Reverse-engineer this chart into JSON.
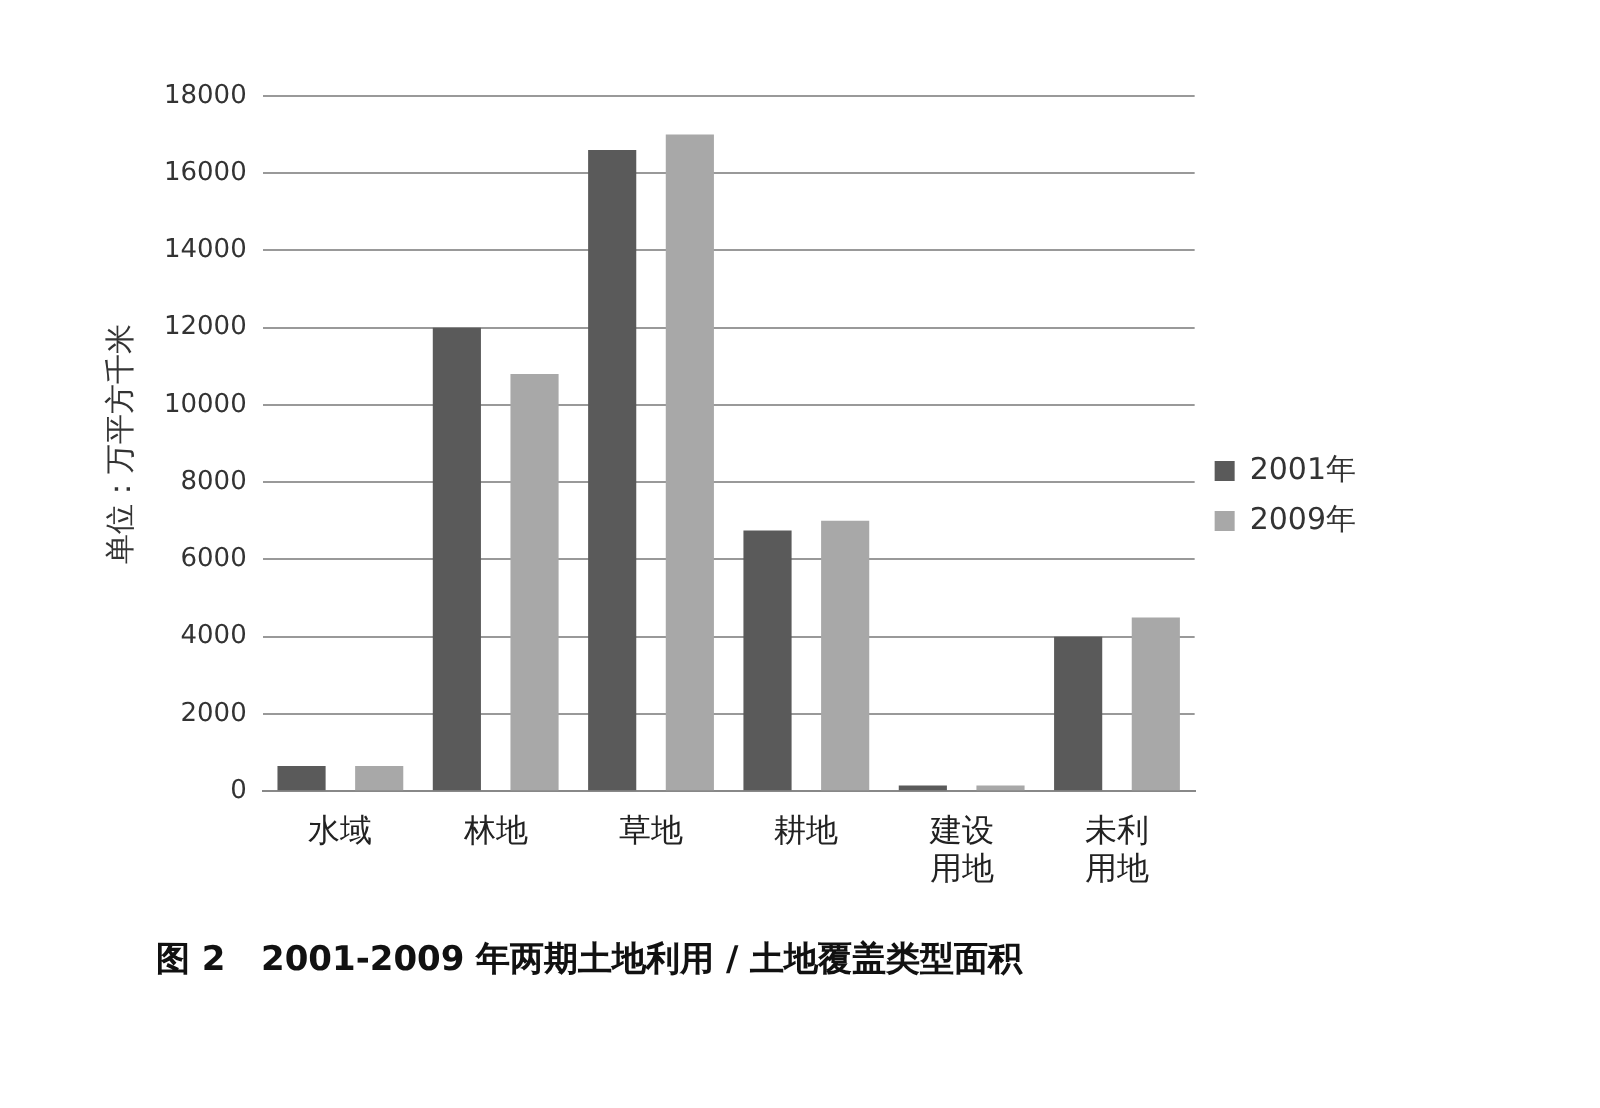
{
  "chart_data": {
    "type": "bar",
    "title": "图 2   2001-2009 年两期土地利用 / 土地覆盖类型面积",
    "ylabel": "单位：万平方千米",
    "categories": [
      "水域",
      "林地",
      "草地",
      "耕地",
      "建设用地",
      "未利用地"
    ],
    "series": [
      {
        "name": "2001年",
        "color": "#5a5a5a",
        "values": [
          650,
          12000,
          16600,
          6750,
          150,
          4000
        ]
      },
      {
        "name": "2009年",
        "color": "#a8a8a8",
        "values": [
          650,
          10800,
          17000,
          7000,
          150,
          4500
        ]
      }
    ],
    "ylim": [
      0,
      18000
    ],
    "yticks": [
      0,
      2000,
      4000,
      6000,
      8000,
      10000,
      12000,
      14000,
      16000,
      18000
    ],
    "grid": "y",
    "legend": "right"
  }
}
